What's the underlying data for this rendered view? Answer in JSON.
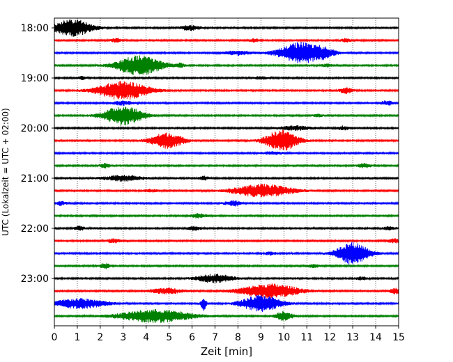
{
  "chart_data": {
    "type": "line",
    "title": "",
    "xlabel": "Zeit  [min]",
    "ylabel": "UTC (Lokalzeit = UTC + 02:00)",
    "xlim": [
      0,
      15
    ],
    "x_ticks": [
      0,
      1,
      2,
      3,
      4,
      5,
      6,
      7,
      8,
      9,
      10,
      11,
      12,
      13,
      14,
      15
    ],
    "x_tick_labels": [
      "0",
      "1",
      "2",
      "3",
      "4",
      "5",
      "6",
      "7",
      "8",
      "9",
      "10",
      "11",
      "12",
      "13",
      "14",
      "15"
    ],
    "y_tick_labels": [
      "18:00",
      "19:00",
      "20:00",
      "21:00",
      "22:00",
      "23:00"
    ],
    "y_tick_rows": [
      0,
      4,
      8,
      12,
      16,
      20
    ],
    "grid": "vertical-dotted",
    "colors": [
      "#000000",
      "#ff0000",
      "#0000ff",
      "#008000"
    ],
    "traces": [
      {
        "start": "18:00",
        "color": "#000000",
        "bursts": [
          [
            0.8,
            0.6,
            12
          ],
          [
            5.9,
            0.3,
            3.5
          ]
        ]
      },
      {
        "start": "18:15",
        "color": "#ff0000",
        "bursts": [
          [
            2.7,
            0.15,
            3
          ],
          [
            8.7,
            0.15,
            2.5
          ],
          [
            12.7,
            0.15,
            2.5
          ]
        ]
      },
      {
        "start": "18:30",
        "color": "#0000ff",
        "bursts": [
          [
            10.8,
            0.7,
            15
          ],
          [
            8.0,
            0.4,
            3
          ],
          [
            11.8,
            0.3,
            3
          ]
        ]
      },
      {
        "start": "18:45",
        "color": "#008000",
        "bursts": [
          [
            3.7,
            0.7,
            14
          ],
          [
            5.5,
            0.15,
            2.5
          ],
          [
            11.9,
            0.2,
            2
          ]
        ]
      },
      {
        "start": "19:00",
        "color": "#000000",
        "bursts": [
          [
            1.2,
            0.15,
            2
          ],
          [
            9.0,
            0.2,
            2
          ]
        ]
      },
      {
        "start": "19:15",
        "color": "#ff0000",
        "bursts": [
          [
            3.0,
            0.8,
            13
          ],
          [
            12.7,
            0.2,
            4
          ]
        ]
      },
      {
        "start": "19:30",
        "color": "#0000ff",
        "bursts": [
          [
            3.0,
            0.3,
            3
          ],
          [
            14.5,
            0.2,
            3
          ]
        ]
      },
      {
        "start": "19:45",
        "color": "#008000",
        "bursts": [
          [
            3.0,
            0.6,
            14
          ],
          [
            11.5,
            0.15,
            2
          ]
        ]
      },
      {
        "start": "20:00",
        "color": "#000000",
        "bursts": [
          [
            10.5,
            0.5,
            3
          ],
          [
            12.6,
            0.15,
            3
          ]
        ]
      },
      {
        "start": "20:15",
        "color": "#ff0000",
        "bursts": [
          [
            4.9,
            0.5,
            11
          ],
          [
            9.9,
            0.5,
            15
          ]
        ]
      },
      {
        "start": "20:30",
        "color": "#0000ff",
        "bursts": [
          [
            9.5,
            0.3,
            2
          ]
        ]
      },
      {
        "start": "20:45",
        "color": "#008000",
        "bursts": [
          [
            2.2,
            0.15,
            3
          ],
          [
            13.5,
            0.2,
            3
          ]
        ]
      },
      {
        "start": "21:00",
        "color": "#000000",
        "bursts": [
          [
            3.0,
            0.6,
            4
          ],
          [
            6.5,
            0.15,
            3
          ]
        ]
      },
      {
        "start": "21:15",
        "color": "#ff0000",
        "bursts": [
          [
            9.1,
            0.9,
            9
          ],
          [
            4.2,
            0.2,
            2
          ]
        ]
      },
      {
        "start": "21:30",
        "color": "#0000ff",
        "bursts": [
          [
            0.3,
            0.15,
            3
          ],
          [
            7.6,
            0.2,
            2
          ],
          [
            7.9,
            0.15,
            3
          ]
        ]
      },
      {
        "start": "21:45",
        "color": "#008000",
        "bursts": [
          [
            6.3,
            0.25,
            3
          ]
        ]
      },
      {
        "start": "22:00",
        "color": "#000000",
        "bursts": [
          [
            1.1,
            0.15,
            3
          ],
          [
            6.1,
            0.2,
            3
          ],
          [
            14.6,
            0.2,
            2
          ]
        ]
      },
      {
        "start": "22:15",
        "color": "#ff0000",
        "bursts": [
          [
            2.6,
            0.2,
            3
          ],
          [
            14.8,
            0.2,
            3
          ]
        ]
      },
      {
        "start": "22:30",
        "color": "#0000ff",
        "bursts": [
          [
            13.0,
            0.5,
            16
          ],
          [
            9.4,
            0.2,
            2
          ]
        ]
      },
      {
        "start": "22:45",
        "color": "#008000",
        "bursts": [
          [
            2.2,
            0.15,
            4
          ],
          [
            11.3,
            0.2,
            2
          ]
        ]
      },
      {
        "start": "23:00",
        "color": "#000000",
        "bursts": [
          [
            7.0,
            0.55,
            6
          ],
          [
            13.4,
            0.2,
            2
          ]
        ]
      },
      {
        "start": "23:15",
        "color": "#ff0000",
        "bursts": [
          [
            9.4,
            0.9,
            10
          ],
          [
            4.9,
            0.5,
            4
          ],
          [
            14.9,
            0.2,
            4
          ]
        ]
      },
      {
        "start": "23:30",
        "color": "#0000ff",
        "bursts": [
          [
            1.1,
            0.8,
            7
          ],
          [
            6.5,
            0.08,
            10
          ],
          [
            9.0,
            0.6,
            12
          ]
        ]
      },
      {
        "start": "23:45",
        "color": "#008000",
        "bursts": [
          [
            4.4,
            1.1,
            9
          ],
          [
            10.0,
            0.25,
            7
          ]
        ]
      }
    ]
  }
}
